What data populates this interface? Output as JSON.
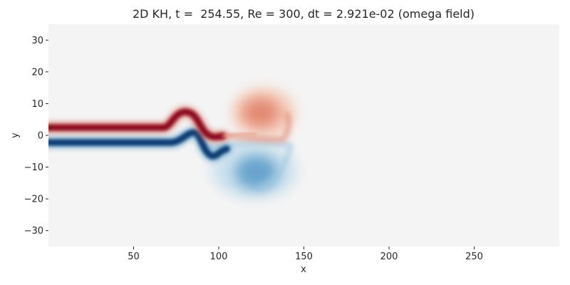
{
  "chart_data": {
    "type": "heatmap",
    "title": "2D KH, t =  254.55, Re = 300, dt = 2.921e-02 (omega field)",
    "xlabel": "x",
    "ylabel": "y",
    "xlim": [
      0,
      300
    ],
    "ylim": [
      -35,
      35
    ],
    "xticks": [
      50,
      100,
      150,
      200,
      250
    ],
    "yticks": [
      30,
      20,
      10,
      0,
      -10,
      -20,
      -30
    ],
    "grid": false,
    "colormap": "RdBu_r",
    "background_color": "#f4f4f4",
    "colors": {
      "positive": "#67001f",
      "negative": "#053061"
    },
    "features": [
      {
        "name": "positive shear layer",
        "x_start": 0,
        "x_end": 75,
        "y_center": 2.2,
        "y_half_width": 1.9,
        "value": 1.0
      },
      {
        "name": "negative shear layer",
        "x_start": 0,
        "x_end": 75,
        "y_center": -2.2,
        "y_half_width": 1.9,
        "value": -1.0
      },
      {
        "name": "positive crest",
        "x": 80,
        "y": 6.5,
        "value": 0.85
      },
      {
        "name": "negative trough",
        "x": 93,
        "y": -6.5,
        "value": -0.8
      },
      {
        "name": "positive upper vortex",
        "x": 124,
        "y": 7,
        "value": 0.45
      },
      {
        "name": "negative lower vortex",
        "x": 122,
        "y": -12,
        "value": -0.45
      }
    ]
  }
}
